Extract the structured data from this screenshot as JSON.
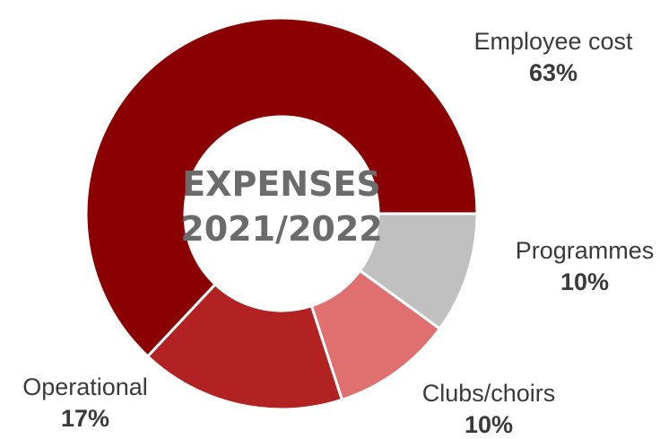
{
  "chart_data": {
    "type": "pie",
    "style": "donut",
    "center_label": [
      "EXPENSES",
      "2021/2022"
    ],
    "slices": [
      {
        "label": "Employee cost",
        "value": 63,
        "display": "63%",
        "color": "#8b0000"
      },
      {
        "label": "Programmes",
        "value": 10,
        "display": "10%",
        "color": "#c0c0c0"
      },
      {
        "label": "Clubs/choirs",
        "value": 10,
        "display": "10%",
        "color": "#e07070"
      },
      {
        "label": "Operational",
        "value": 17,
        "display": "17%",
        "color": "#b22222"
      }
    ]
  }
}
